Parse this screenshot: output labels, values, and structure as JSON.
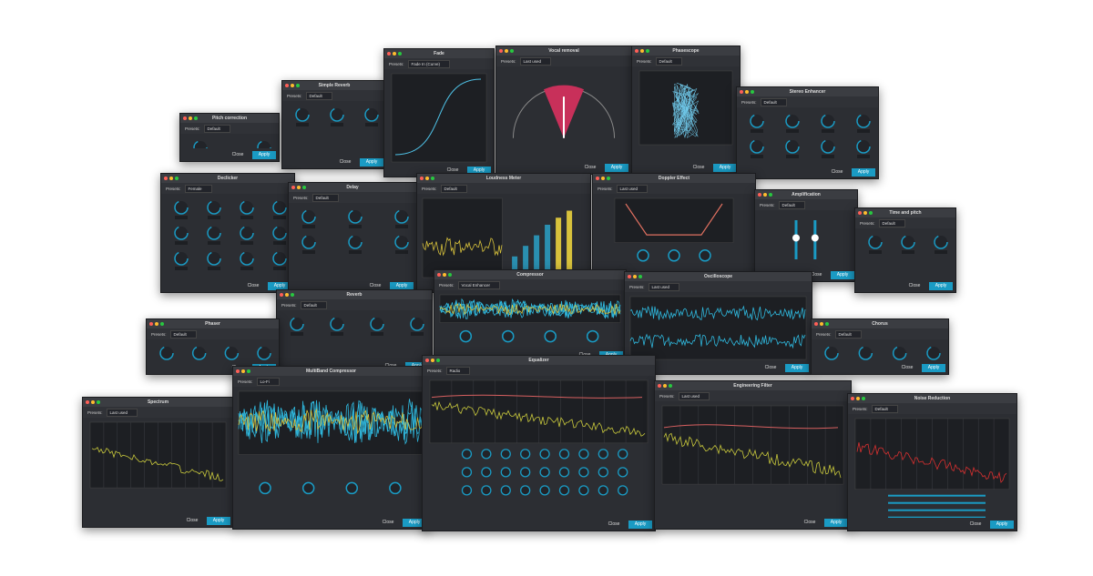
{
  "windows": [
    {
      "title": "Pitch correction",
      "presets_label": "Presets:",
      "preset": "Default"
    },
    {
      "title": "Simple Reverb",
      "presets_label": "Presets:",
      "preset": "Default"
    },
    {
      "title": "Fade",
      "presets_label": "Presets:",
      "preset": "Fade In (Curve)"
    },
    {
      "title": "Vocal removal",
      "presets_label": "Presets:",
      "preset": "Last used"
    },
    {
      "title": "Phasescope",
      "presets_label": "Presets:",
      "preset": "Default"
    },
    {
      "title": "Stereo Enhancer",
      "presets_label": "Presets:",
      "preset": "Default"
    },
    {
      "title": "Declicker",
      "presets_label": "Presets:",
      "preset": "Female"
    },
    {
      "title": "Delay",
      "presets_label": "Presets:",
      "preset": "Default"
    },
    {
      "title": "Loudness Meter",
      "presets_label": "Presets:",
      "preset": "Default"
    },
    {
      "title": "Doppler Effect",
      "presets_label": "Presets:",
      "preset": "Last used"
    },
    {
      "title": "Amplification",
      "presets_label": "Presets:",
      "preset": "Default"
    },
    {
      "title": "Time and pitch",
      "presets_label": "Presets:",
      "preset": "Default"
    },
    {
      "title": "Reverb",
      "presets_label": "Presets:",
      "preset": "Default"
    },
    {
      "title": "Compressor",
      "presets_label": "Presets:",
      "preset": "Vocal Enhancer"
    },
    {
      "title": "Oscilloscope",
      "presets_label": "Presets:",
      "preset": "Last used"
    },
    {
      "title": "Phaser",
      "presets_label": "Presets:",
      "preset": "Default"
    },
    {
      "title": "Chorus",
      "presets_label": "Presets:",
      "preset": "Default"
    },
    {
      "title": "Spectrum",
      "presets_label": "Presets:",
      "preset": "Last used"
    },
    {
      "title": "MultiBand Compressor",
      "presets_label": "Presets:",
      "preset": "Lo-Fi"
    },
    {
      "title": "Equalizer",
      "presets_label": "Presets:",
      "preset": "Radio"
    },
    {
      "title": "Engineering Filter",
      "presets_label": "Presets:",
      "preset": "Last used"
    },
    {
      "title": "Noise Reduction",
      "presets_label": "Presets:",
      "preset": "Default"
    }
  ],
  "buttons": {
    "close": "Close",
    "apply": "Apply"
  }
}
